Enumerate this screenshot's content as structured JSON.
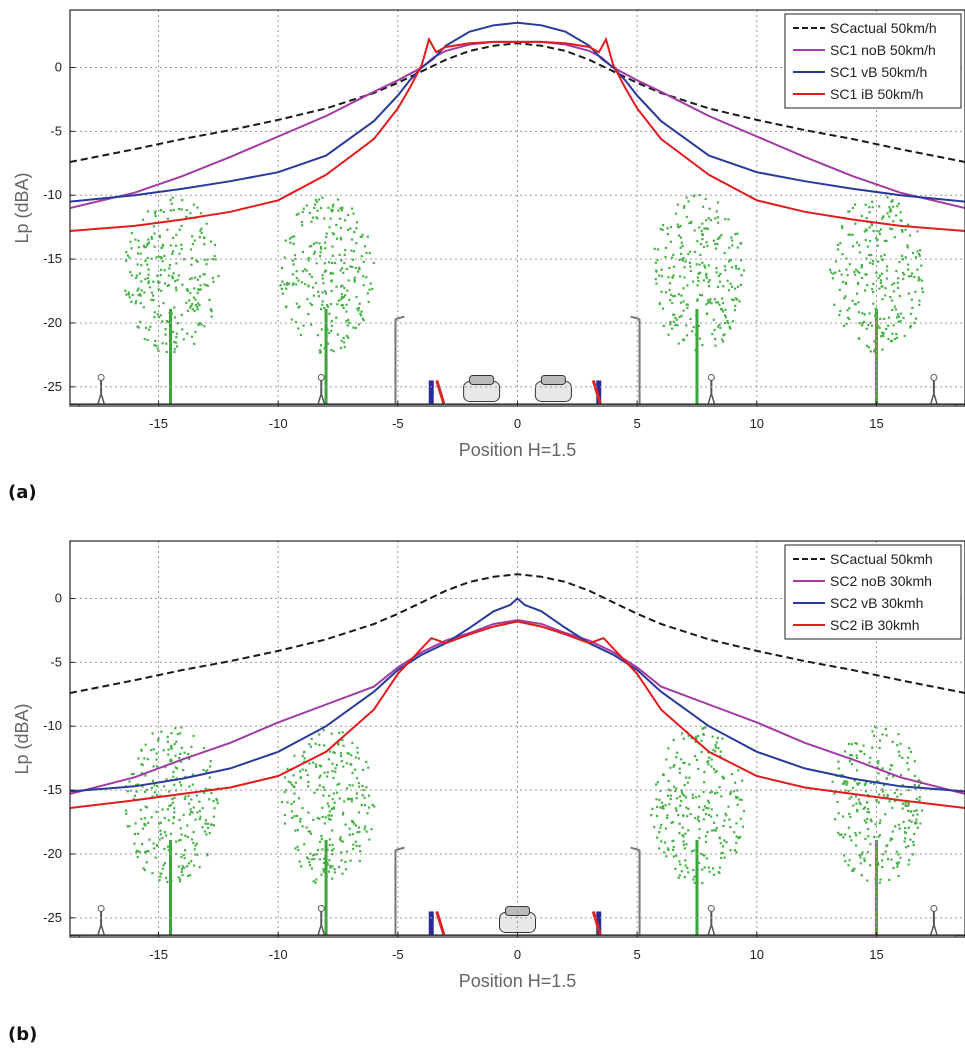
{
  "figure": {
    "panels": [
      {
        "label": "(a)",
        "chart_data": {
          "type": "line",
          "xlabel": "Position H=1.5",
          "ylabel": "Lp (dBA)",
          "xlim": [
            -18.7,
            18.7
          ],
          "ylim": [
            -26.5,
            4.5
          ],
          "xticks": [
            -15,
            -10,
            -5,
            0,
            5,
            10,
            15
          ],
          "yticks": [
            0,
            -5,
            -10,
            -15,
            -20,
            -25
          ],
          "grid": true,
          "legend_position": "top-right",
          "series": [
            {
              "name": "SCactual 50km/h",
              "color": "#1a1a1a",
              "dash": "dashed",
              "x": [
                -18.7,
                -16,
                -14,
                -12,
                -10,
                -8,
                -6,
                -5,
                -4,
                -3,
                -2,
                -1,
                0,
                1,
                2,
                3,
                4,
                5,
                6,
                8,
                10,
                12,
                14,
                16,
                18.7
              ],
              "y": [
                -7.4,
                -6.4,
                -5.6,
                -4.9,
                -4.1,
                -3.2,
                -2.0,
                -1.2,
                -0.3,
                0.6,
                1.3,
                1.7,
                1.9,
                1.7,
                1.3,
                0.6,
                -0.3,
                -1.2,
                -2.0,
                -3.2,
                -4.1,
                -4.9,
                -5.6,
                -6.4,
                -7.4
              ]
            },
            {
              "name": "SC1 noB  50km/h",
              "color": "#a23ba3",
              "dash": "solid",
              "x": [
                -18.7,
                -16,
                -14,
                -12,
                -10,
                -8,
                -6,
                -5,
                -4,
                -3.5,
                -3,
                -2,
                -1,
                0,
                1,
                2,
                3,
                3.5,
                4,
                5,
                6,
                8,
                10,
                12,
                14,
                16,
                18.7
              ],
              "y": [
                -11.0,
                -9.8,
                -8.5,
                -7.0,
                -5.4,
                -3.8,
                -1.9,
                -1.0,
                0.0,
                0.8,
                1.3,
                1.8,
                2.0,
                2.0,
                2.0,
                1.8,
                1.3,
                0.8,
                0.0,
                -1.0,
                -1.9,
                -3.8,
                -5.4,
                -7.0,
                -8.5,
                -9.8,
                -11.0
              ]
            },
            {
              "name": "SC1 vB  50km/h",
              "color": "#2a3a9a",
              "dash": "solid",
              "x": [
                -18.7,
                -16,
                -14,
                -12,
                -10,
                -8,
                -6,
                -5,
                -4.5,
                -4,
                -3.5,
                -3,
                -2,
                -1,
                0,
                1,
                2,
                3,
                3.5,
                4,
                4.5,
                5,
                6,
                8,
                10,
                12,
                14,
                16,
                18.7
              ],
              "y": [
                -10.5,
                -10.0,
                -9.5,
                -8.9,
                -8.2,
                -6.9,
                -4.2,
                -2.2,
                -1.0,
                0.0,
                0.7,
                1.7,
                2.8,
                3.3,
                3.5,
                3.3,
                2.8,
                1.7,
                0.7,
                0.0,
                -1.0,
                -2.2,
                -4.2,
                -6.9,
                -8.2,
                -8.9,
                -9.5,
                -10.0,
                -10.5
              ]
            },
            {
              "name": "SC1 iB 50km/h",
              "color": "#e21c1c",
              "dash": "solid",
              "x": [
                -18.7,
                -16,
                -14,
                -12,
                -10,
                -8,
                -6,
                -5,
                -4.5,
                -4,
                -3.7,
                -3.4,
                -3,
                -2,
                -1,
                0,
                1,
                2,
                3,
                3.4,
                3.7,
                4,
                4.5,
                5,
                6,
                8,
                10,
                12,
                14,
                16,
                18.7
              ],
              "y": [
                -12.8,
                -12.4,
                -11.9,
                -11.3,
                -10.4,
                -8.4,
                -5.6,
                -3.2,
                -1.6,
                0.2,
                2.2,
                1.2,
                1.6,
                1.9,
                2.0,
                2.0,
                2.0,
                1.9,
                1.6,
                1.2,
                2.2,
                0.2,
                -1.6,
                -3.2,
                -5.6,
                -8.4,
                -10.4,
                -11.3,
                -11.9,
                -12.4,
                -12.8
              ]
            }
          ]
        }
      },
      {
        "label": "(b)",
        "chart_data": {
          "type": "line",
          "xlabel": "Position H=1.5",
          "ylabel": "Lp (dBA)",
          "xlim": [
            -18.7,
            18.7
          ],
          "ylim": [
            -26.5,
            4.5
          ],
          "xticks": [
            -15,
            -10,
            -5,
            0,
            5,
            10,
            15
          ],
          "yticks": [
            0,
            -5,
            -10,
            -15,
            -20,
            -25
          ],
          "grid": true,
          "legend_position": "top-right",
          "series": [
            {
              "name": "SCactual 50kmh",
              "color": "#1a1a1a",
              "dash": "dashed",
              "x": [
                -18.7,
                -16,
                -14,
                -12,
                -10,
                -8,
                -6,
                -5,
                -4,
                -3,
                -2,
                -1,
                0,
                1,
                2,
                3,
                4,
                5,
                6,
                8,
                10,
                12,
                14,
                16,
                18.7
              ],
              "y": [
                -7.4,
                -6.4,
                -5.6,
                -4.9,
                -4.1,
                -3.2,
                -2.0,
                -1.2,
                -0.3,
                0.6,
                1.3,
                1.7,
                1.9,
                1.7,
                1.3,
                0.6,
                -0.3,
                -1.2,
                -2.0,
                -3.2,
                -4.1,
                -4.9,
                -5.6,
                -6.4,
                -7.4
              ]
            },
            {
              "name": "SC2 noB 30kmh",
              "color": "#a23ba3",
              "dash": "solid",
              "x": [
                -18.7,
                -16,
                -14,
                -12,
                -10,
                -8,
                -6,
                -5,
                -4,
                -3,
                -2,
                -1,
                0,
                1,
                2,
                3,
                4,
                5,
                6,
                8,
                10,
                12,
                14,
                16,
                18.7
              ],
              "y": [
                -15.3,
                -14.0,
                -12.6,
                -11.3,
                -9.7,
                -8.3,
                -6.9,
                -5.4,
                -4.2,
                -3.3,
                -2.7,
                -2.0,
                -1.7,
                -2.0,
                -2.7,
                -3.3,
                -4.2,
                -5.4,
                -6.9,
                -8.3,
                -9.7,
                -11.3,
                -12.6,
                -14.0,
                -15.3
              ]
            },
            {
              "name": "SC2 vB 30kmh",
              "color": "#2a3a9a",
              "dash": "solid",
              "x": [
                -18.7,
                -16,
                -14,
                -12,
                -10,
                -8,
                -6,
                -5,
                -4,
                -3,
                -2,
                -1,
                -0.3,
                0,
                0.3,
                1,
                2,
                3,
                4,
                5,
                6,
                8,
                10,
                12,
                14,
                16,
                18.7
              ],
              "y": [
                -15.1,
                -14.7,
                -14.1,
                -13.3,
                -12.0,
                -10.0,
                -7.3,
                -5.6,
                -4.4,
                -3.5,
                -2.3,
                -1.0,
                -0.5,
                0.0,
                -0.5,
                -1.0,
                -2.3,
                -3.5,
                -4.4,
                -5.6,
                -7.3,
                -10.0,
                -12.0,
                -13.3,
                -14.1,
                -14.7,
                -15.1
              ]
            },
            {
              "name": "SC2 iB 30kmh",
              "color": "#e21c1c",
              "dash": "solid",
              "x": [
                -18.7,
                -16,
                -14,
                -12,
                -10,
                -8,
                -6,
                -5,
                -4,
                -3.6,
                -3,
                -2,
                -1,
                0,
                1,
                2,
                3,
                3.6,
                4,
                5,
                6,
                8,
                10,
                12,
                14,
                16,
                18.7
              ],
              "y": [
                -16.4,
                -15.8,
                -15.3,
                -14.8,
                -13.9,
                -12.0,
                -8.7,
                -5.9,
                -3.9,
                -3.1,
                -3.5,
                -2.8,
                -2.2,
                -1.8,
                -2.2,
                -2.8,
                -3.5,
                -3.1,
                -3.9,
                -5.9,
                -8.7,
                -12.0,
                -13.9,
                -14.8,
                -15.3,
                -15.8,
                -16.4
              ]
            }
          ]
        }
      }
    ]
  }
}
